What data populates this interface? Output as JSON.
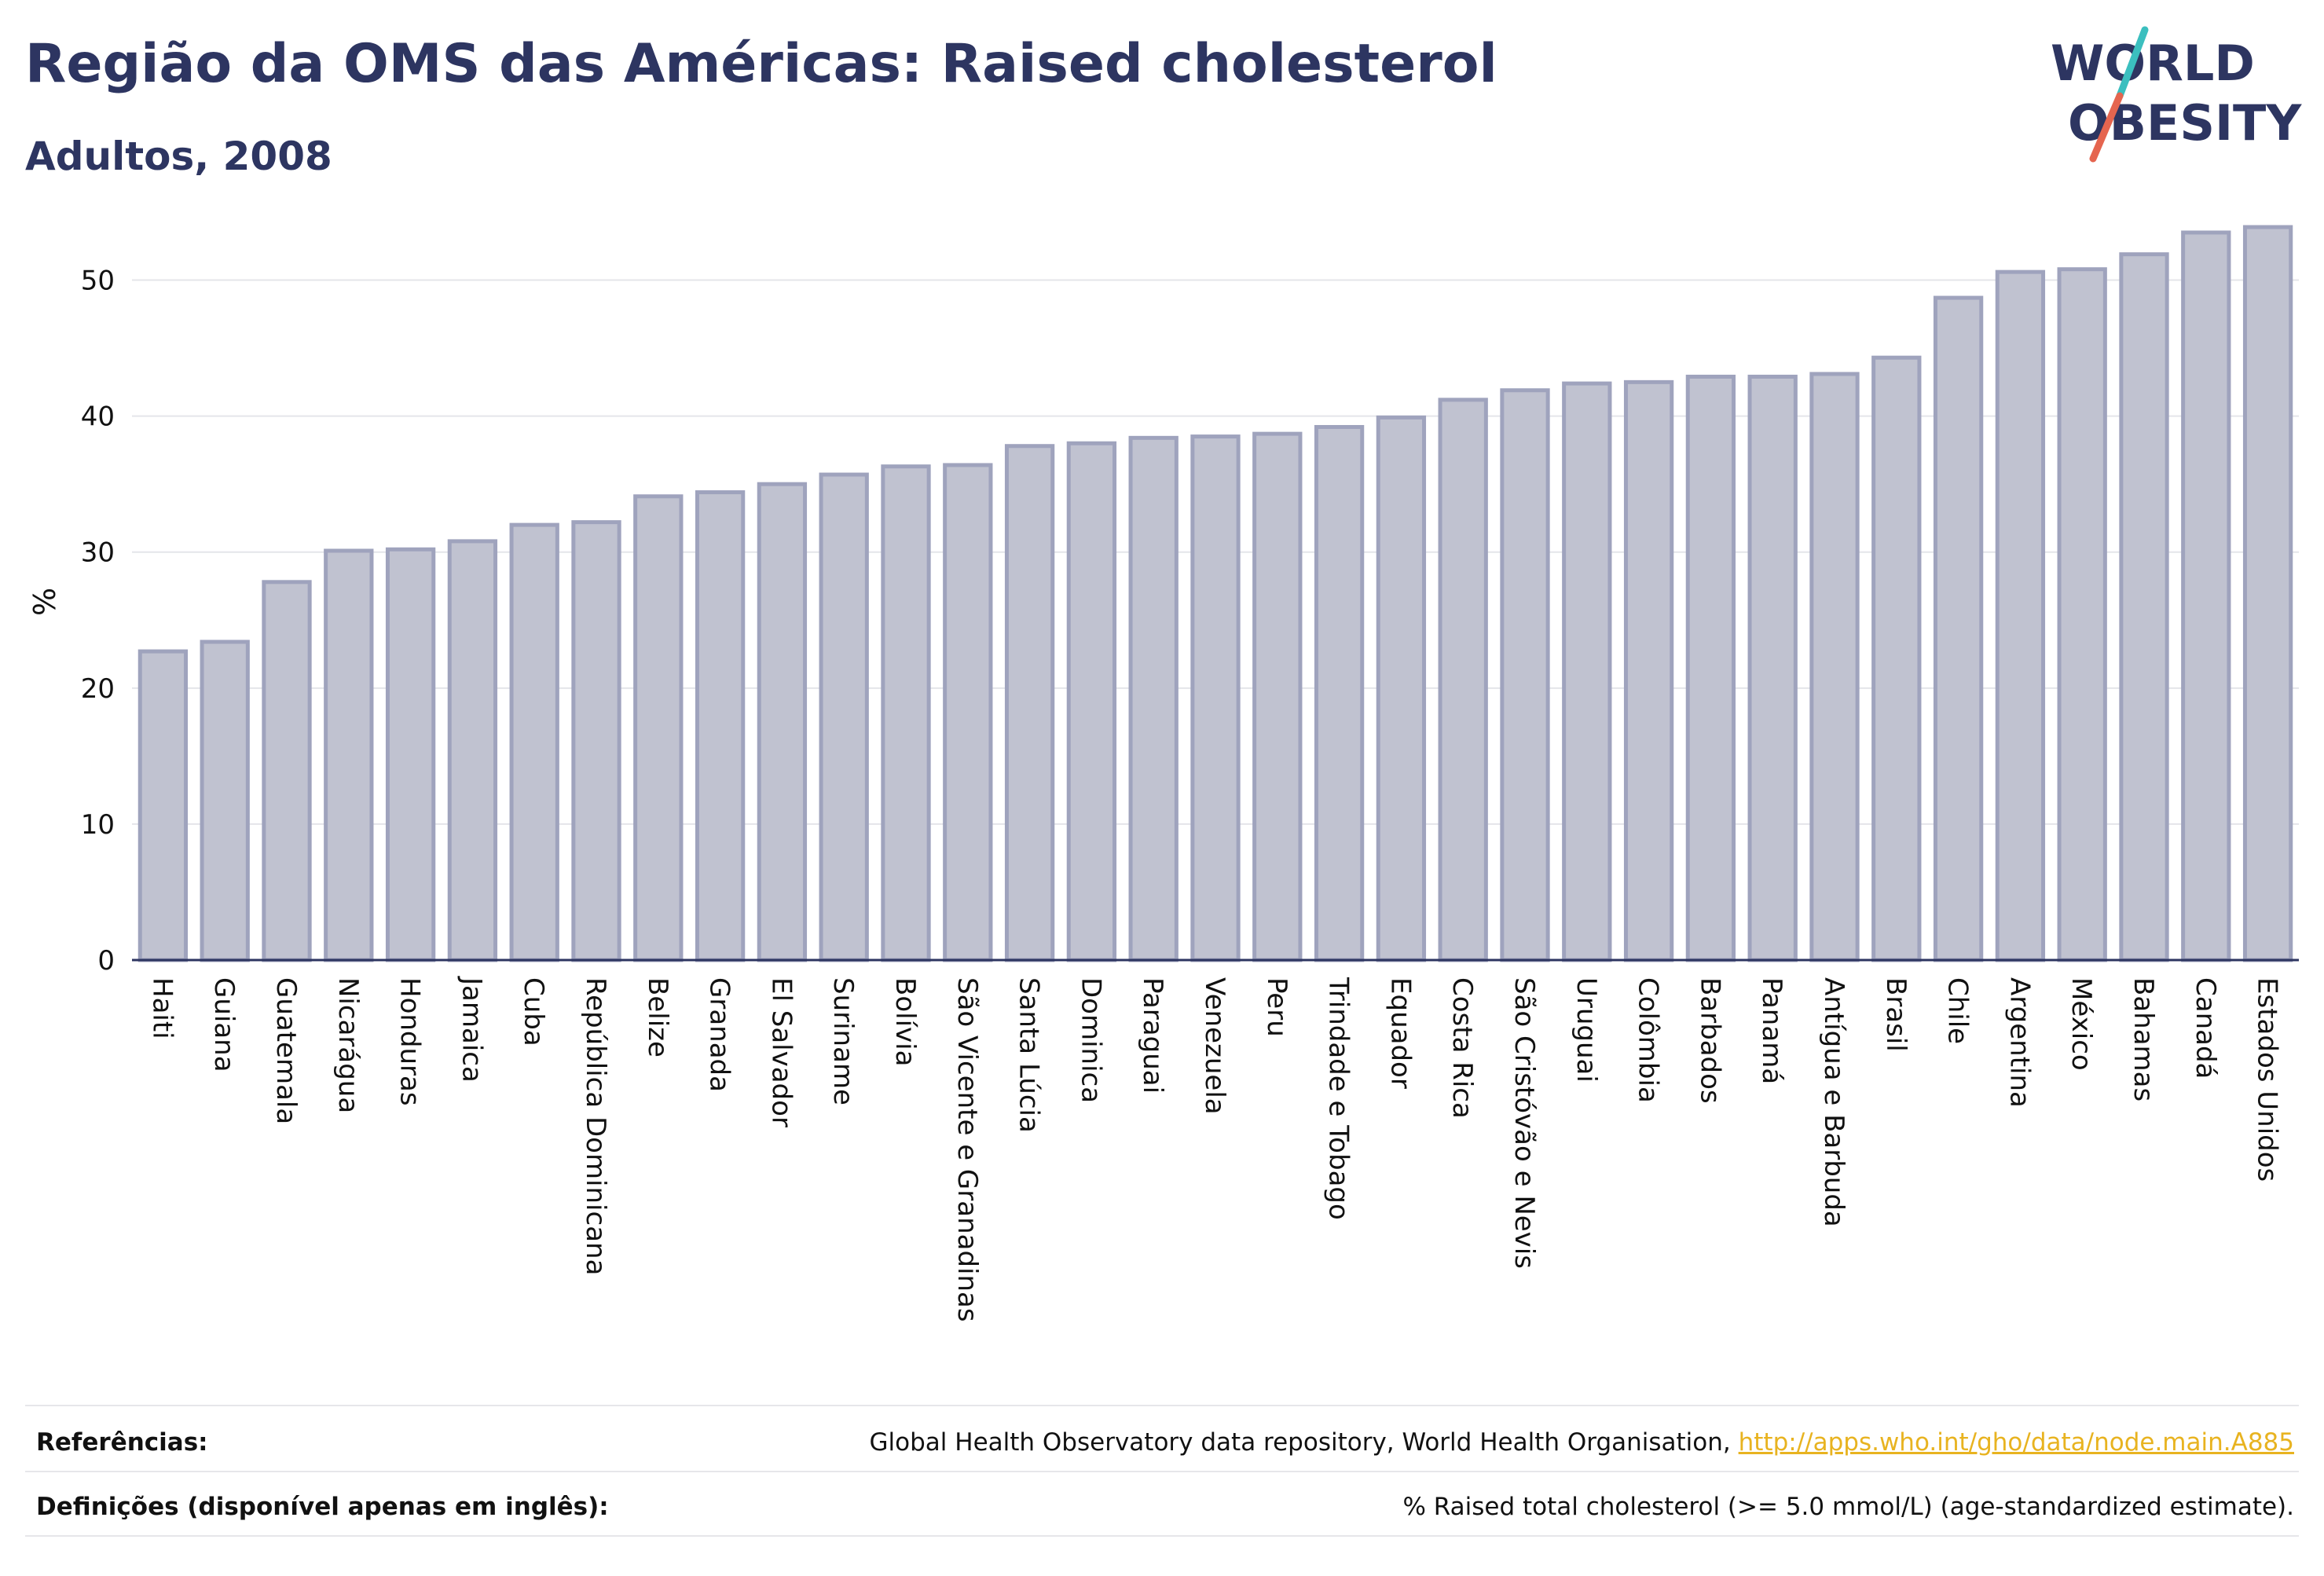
{
  "header": {
    "title": "Região da OMS das Américas: Raised cholesterol",
    "subtitle": "Adultos, 2008"
  },
  "logo": {
    "line1": "WORLD",
    "line2": "OBESITY"
  },
  "chart_data": {
    "type": "bar",
    "ylabel": "%",
    "ylim": [
      0,
      55
    ],
    "yticks": [
      0,
      10,
      20,
      30,
      40,
      50
    ],
    "grid": true,
    "bar_color": "#c0c2d0",
    "bar_edge_color": "#9fa3bd",
    "categories": [
      "Haiti",
      "Guiana",
      "Guatemala",
      "Nicarágua",
      "Honduras",
      "Jamaica",
      "Cuba",
      "República Dominicana",
      "Belize",
      "Granada",
      "El Salvador",
      "Suriname",
      "Bolívia",
      "São Vicente e Granadinas",
      "Santa Lúcia",
      "Dominica",
      "Paraguai",
      "Venezuela",
      "Peru",
      "Trindade e Tobago",
      "Equador",
      "Costa Rica",
      "São Cristóvão e Nevis",
      "Uruguai",
      "Colômbia",
      "Barbados",
      "Panamá",
      "Antígua e Barbuda",
      "Brasil",
      "Chile",
      "Argentina",
      "México",
      "Bahamas",
      "Canadá",
      "Estados Unidos"
    ],
    "values": [
      22.7,
      23.4,
      27.8,
      30.1,
      30.2,
      30.8,
      32.0,
      32.2,
      34.1,
      34.4,
      35.0,
      35.7,
      36.3,
      36.4,
      37.8,
      38.0,
      38.4,
      38.5,
      38.7,
      39.2,
      39.9,
      41.2,
      41.9,
      42.4,
      42.5,
      42.9,
      42.9,
      43.1,
      44.3,
      48.7,
      50.6,
      50.8,
      51.9,
      53.5,
      53.9
    ]
  },
  "footer": {
    "references_label": "Referências:",
    "references_text": "Global Health Observatory data repository, World Health Organisation, ",
    "references_link": "http://apps.who.int/gho/data/node.main.A885",
    "definitions_label": "Definições (disponível apenas em inglês):",
    "definitions_text": "% Raised total cholesterol (>= 5.0 mmol/L) (age-standardized estimate)."
  },
  "colors": {
    "text": "#2d3561",
    "accent_teal": "#3bbfbf",
    "accent_red": "#e5654f",
    "link": "#e8b320"
  }
}
